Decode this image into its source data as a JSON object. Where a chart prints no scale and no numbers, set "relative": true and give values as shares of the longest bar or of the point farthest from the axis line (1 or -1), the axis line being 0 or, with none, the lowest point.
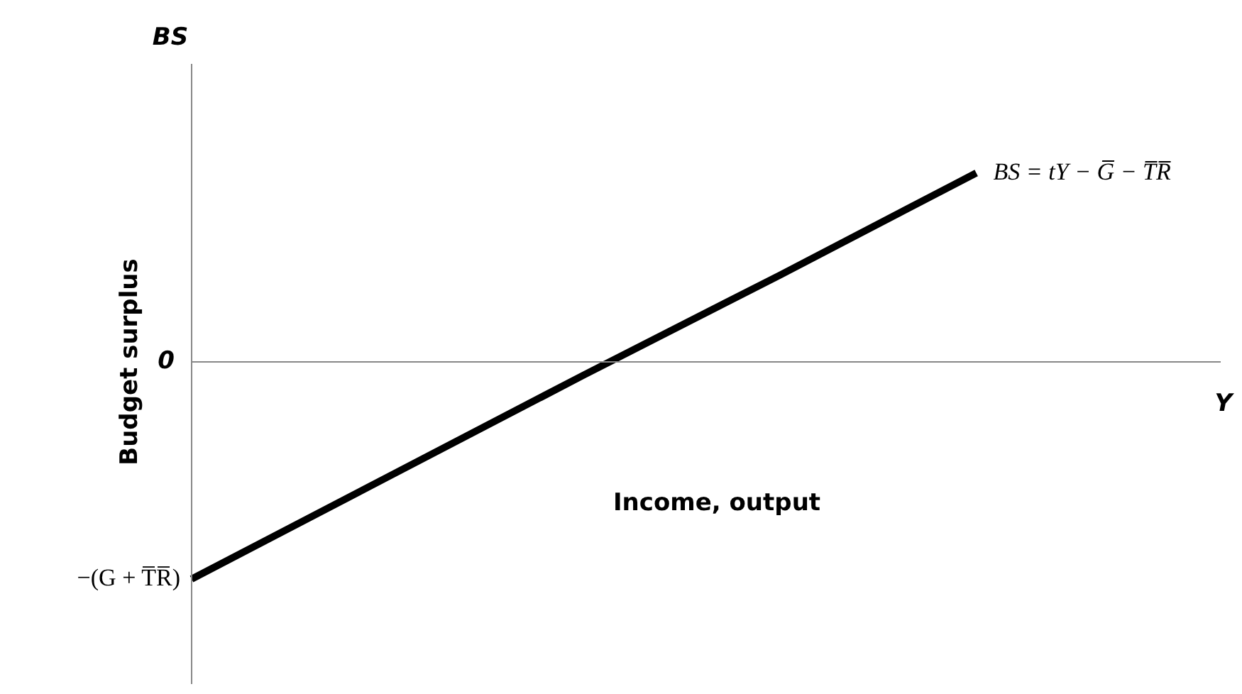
{
  "chart_data": {
    "type": "line",
    "relative": true,
    "xlabel": "Income, output",
    "ylabel": "Budget surplus",
    "categories": [
      null,
      null,
      null,
      null,
      null,
      null
    ],
    "series": [
      {
        "name": "BS = tY − G̅ − T̅R̅",
        "color": "#000000",
        "values": [
          -1,
          -0.53,
          -0.06,
          0.4,
          0.87,
          null
        ]
      }
    ],
    "annotations": [
      "BS",
      "Y",
      "0",
      "−(G + T̅R̅)"
    ],
    "legend": false,
    "marker": "none",
    "line_style": "solid"
  }
}
